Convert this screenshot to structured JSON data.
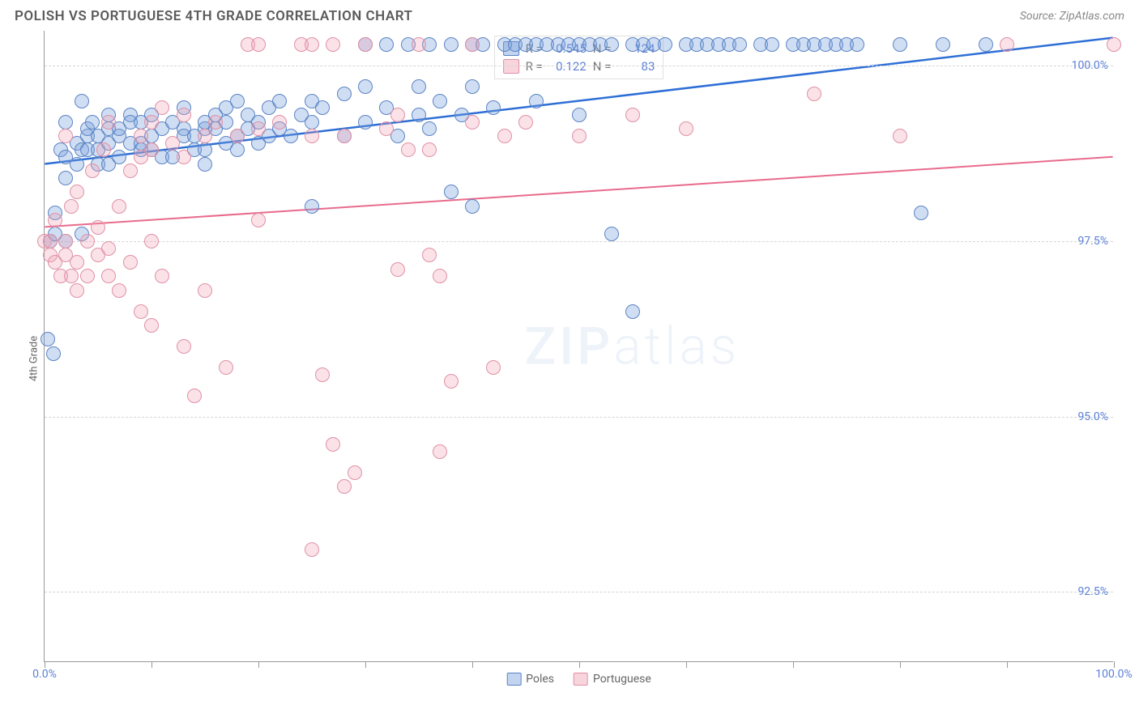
{
  "header": {
    "title": "POLISH VS PORTUGUESE 4TH GRADE CORRELATION CHART",
    "source": "Source: ZipAtlas.com"
  },
  "chart": {
    "type": "scatter",
    "y_axis_label": "4th Grade",
    "background_color": "#ffffff",
    "grid_color": "#d5d5d5",
    "axis_color": "#999999",
    "watermark_text": "ZIPatlas",
    "xlim": [
      0,
      100
    ],
    "ylim": [
      91.5,
      100.5
    ],
    "x_tick_values": [
      0,
      10,
      20,
      30,
      40,
      50,
      60,
      70,
      80,
      90,
      100
    ],
    "x_tick_labels": {
      "0": "0.0%",
      "100": "100.0%"
    },
    "y_tick_values": [
      92.5,
      95.0,
      97.5,
      100.0
    ],
    "y_tick_labels": {
      "92.5": "92.5%",
      "95.0": "95.0%",
      "97.5": "97.5%",
      "100.0": "100.0%"
    },
    "y_tick_color": "#5b7fd6",
    "x_tick_color": "#5b7fd6",
    "label_fontsize": 13,
    "tick_fontsize": 14,
    "marker_size": 18,
    "series": [
      {
        "name": "Poles",
        "color_fill": "rgba(120,160,220,0.35)",
        "color_stroke": "#5b84c4",
        "R": "0.545",
        "N": "124",
        "trend": {
          "x1": 0,
          "y1": 98.6,
          "x2": 100,
          "y2": 100.4,
          "color": "#2e6fd6",
          "width": 2.5
        },
        "points": [
          [
            0.5,
            97.5
          ],
          [
            1,
            97.9
          ],
          [
            1,
            97.6
          ],
          [
            1.5,
            98.8
          ],
          [
            2,
            99.2
          ],
          [
            2,
            98.7
          ],
          [
            2,
            98.4
          ],
          [
            2,
            97.5
          ],
          [
            3,
            98.9
          ],
          [
            3,
            98.6
          ],
          [
            3.5,
            97.6
          ],
          [
            3.5,
            98.8
          ],
          [
            3.5,
            99.5
          ],
          [
            4,
            99.0
          ],
          [
            4,
            98.8
          ],
          [
            4,
            99.1
          ],
          [
            4.5,
            99.2
          ],
          [
            5,
            98.8
          ],
          [
            5,
            99.0
          ],
          [
            5,
            98.6
          ],
          [
            6,
            98.9
          ],
          [
            6,
            99.1
          ],
          [
            6,
            99.3
          ],
          [
            6,
            98.6
          ],
          [
            7,
            99.0
          ],
          [
            7,
            99.1
          ],
          [
            7,
            98.7
          ],
          [
            8,
            99.3
          ],
          [
            8,
            98.9
          ],
          [
            8,
            99.2
          ],
          [
            9,
            98.8
          ],
          [
            9,
            98.9
          ],
          [
            9,
            99.2
          ],
          [
            10,
            99.0
          ],
          [
            10,
            98.8
          ],
          [
            10,
            99.3
          ],
          [
            11,
            99.1
          ],
          [
            11,
            98.7
          ],
          [
            12,
            99.2
          ],
          [
            12,
            98.7
          ],
          [
            13,
            99.1
          ],
          [
            13,
            99.0
          ],
          [
            13,
            99.4
          ],
          [
            14,
            98.8
          ],
          [
            14,
            99.0
          ],
          [
            15,
            99.1
          ],
          [
            15,
            99.2
          ],
          [
            15,
            98.8
          ],
          [
            15,
            98.6
          ],
          [
            16,
            99.3
          ],
          [
            16,
            99.1
          ],
          [
            17,
            98.9
          ],
          [
            17,
            99.4
          ],
          [
            17,
            99.2
          ],
          [
            18,
            99.0
          ],
          [
            18,
            99.5
          ],
          [
            18,
            98.8
          ],
          [
            19,
            99.1
          ],
          [
            19,
            99.3
          ],
          [
            20,
            99.2
          ],
          [
            20,
            98.9
          ],
          [
            21,
            99.4
          ],
          [
            21,
            99.0
          ],
          [
            22,
            99.5
          ],
          [
            22,
            99.1
          ],
          [
            23,
            99.0
          ],
          [
            24,
            99.3
          ],
          [
            25,
            99.5
          ],
          [
            25,
            99.2
          ],
          [
            25,
            98.0
          ],
          [
            26,
            99.4
          ],
          [
            28,
            99.0
          ],
          [
            28,
            99.6
          ],
          [
            30,
            99.2
          ],
          [
            30,
            99.7
          ],
          [
            30,
            100.3
          ],
          [
            32,
            99.4
          ],
          [
            32,
            100.3
          ],
          [
            33,
            99.0
          ],
          [
            34,
            100.3
          ],
          [
            35,
            99.3
          ],
          [
            35,
            99.7
          ],
          [
            36,
            99.1
          ],
          [
            36,
            100.3
          ],
          [
            37,
            99.5
          ],
          [
            38,
            98.2
          ],
          [
            38,
            100.3
          ],
          [
            39,
            99.3
          ],
          [
            40,
            98.0
          ],
          [
            40,
            100.3
          ],
          [
            40,
            99.7
          ],
          [
            41,
            100.3
          ],
          [
            42,
            99.4
          ],
          [
            43,
            100.3
          ],
          [
            44,
            100.3
          ],
          [
            45,
            100.3
          ],
          [
            46,
            99.5
          ],
          [
            46,
            100.3
          ],
          [
            47,
            100.3
          ],
          [
            48,
            100.3
          ],
          [
            49,
            100.3
          ],
          [
            50,
            99.3
          ],
          [
            50,
            100.3
          ],
          [
            51,
            100.3
          ],
          [
            52,
            100.3
          ],
          [
            53,
            97.6
          ],
          [
            53,
            100.3
          ],
          [
            55,
            100.3
          ],
          [
            55,
            96.5
          ],
          [
            56,
            100.3
          ],
          [
            57,
            100.3
          ],
          [
            58,
            100.3
          ],
          [
            60,
            100.3
          ],
          [
            61,
            100.3
          ],
          [
            62,
            100.3
          ],
          [
            63,
            100.3
          ],
          [
            64,
            100.3
          ],
          [
            65,
            100.3
          ],
          [
            67,
            100.3
          ],
          [
            68,
            100.3
          ],
          [
            70,
            100.3
          ],
          [
            71,
            100.3
          ],
          [
            72,
            100.3
          ],
          [
            73,
            100.3
          ],
          [
            74,
            100.3
          ],
          [
            75,
            100.3
          ],
          [
            76,
            100.3
          ],
          [
            80,
            100.3
          ],
          [
            82,
            97.9
          ],
          [
            84,
            100.3
          ],
          [
            88,
            100.3
          ],
          [
            0.3,
            96.1
          ],
          [
            0.8,
            95.9
          ]
        ]
      },
      {
        "name": "Portuguese",
        "color_fill": "rgba(240,160,180,0.30)",
        "color_stroke": "#e091a5",
        "R": "0.122",
        "N": "83",
        "trend": {
          "x1": 0,
          "y1": 97.7,
          "x2": 100,
          "y2": 98.7,
          "color": "#e86b8c",
          "width": 2
        },
        "points": [
          [
            0,
            97.5
          ],
          [
            0.5,
            97.5
          ],
          [
            0.5,
            97.3
          ],
          [
            1,
            97.8
          ],
          [
            1,
            97.2
          ],
          [
            1.5,
            97.0
          ],
          [
            2,
            99.0
          ],
          [
            2,
            97.3
          ],
          [
            2,
            97.5
          ],
          [
            2.5,
            97.0
          ],
          [
            2.5,
            98.0
          ],
          [
            3,
            97.2
          ],
          [
            3,
            96.8
          ],
          [
            3,
            98.2
          ],
          [
            4,
            97.5
          ],
          [
            4,
            97.0
          ],
          [
            4.5,
            98.5
          ],
          [
            5,
            97.3
          ],
          [
            5,
            97.7
          ],
          [
            5.5,
            98.8
          ],
          [
            6,
            97.0
          ],
          [
            6,
            99.2
          ],
          [
            6,
            97.4
          ],
          [
            7,
            98.0
          ],
          [
            7,
            96.8
          ],
          [
            8,
            98.5
          ],
          [
            8,
            97.2
          ],
          [
            9,
            99.0
          ],
          [
            9,
            98.7
          ],
          [
            9,
            96.5
          ],
          [
            10,
            97.5
          ],
          [
            10,
            98.8
          ],
          [
            10,
            99.2
          ],
          [
            10,
            96.3
          ],
          [
            11,
            99.4
          ],
          [
            11,
            97.0
          ],
          [
            12,
            98.9
          ],
          [
            13,
            96.0
          ],
          [
            13,
            98.7
          ],
          [
            13,
            99.3
          ],
          [
            14,
            95.3
          ],
          [
            15,
            99.0
          ],
          [
            15,
            96.8
          ],
          [
            16,
            99.2
          ],
          [
            17,
            95.7
          ],
          [
            18,
            99.0
          ],
          [
            19,
            100.3
          ],
          [
            20,
            99.1
          ],
          [
            20,
            100.3
          ],
          [
            20,
            97.8
          ],
          [
            22,
            99.2
          ],
          [
            24,
            100.3
          ],
          [
            25,
            99.0
          ],
          [
            25,
            93.1
          ],
          [
            25,
            100.3
          ],
          [
            26,
            95.6
          ],
          [
            27,
            100.3
          ],
          [
            27,
            94.6
          ],
          [
            28,
            99.0
          ],
          [
            28,
            94.0
          ],
          [
            29,
            94.2
          ],
          [
            30,
            100.3
          ],
          [
            32,
            99.1
          ],
          [
            33,
            99.3
          ],
          [
            33,
            97.1
          ],
          [
            34,
            98.8
          ],
          [
            35,
            100.3
          ],
          [
            36,
            97.3
          ],
          [
            36,
            98.8
          ],
          [
            37,
            94.5
          ],
          [
            37,
            97.0
          ],
          [
            38,
            95.5
          ],
          [
            40,
            100.3
          ],
          [
            40,
            99.2
          ],
          [
            42,
            95.7
          ],
          [
            43,
            99.0
          ],
          [
            45,
            99.2
          ],
          [
            50,
            99.0
          ],
          [
            55,
            99.3
          ],
          [
            60,
            99.1
          ],
          [
            72,
            99.6
          ],
          [
            80,
            99.0
          ],
          [
            90,
            100.3
          ],
          [
            100,
            100.3
          ]
        ]
      }
    ],
    "legend_stats_labels": {
      "R": "R =",
      "N": "N ="
    },
    "bottom_legend": [
      "Poles",
      "Portuguese"
    ]
  }
}
